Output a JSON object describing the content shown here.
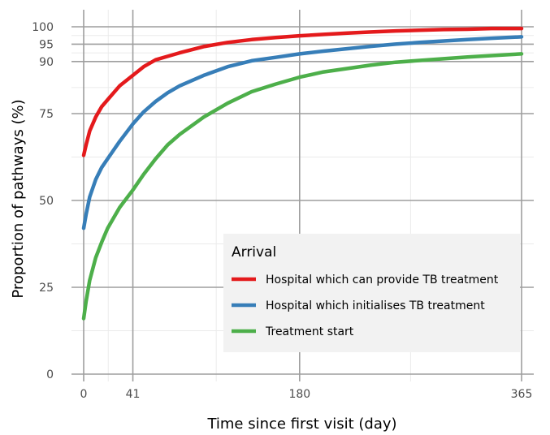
{
  "chart_data": {
    "type": "line",
    "title": "",
    "xlabel": "Time since first visit (day)",
    "ylabel": "Proportion of pathways (%)",
    "xlim": [
      0,
      365
    ],
    "ylim": [
      0,
      100
    ],
    "x_ticks": [
      0,
      41,
      180,
      365
    ],
    "y_ticks": [
      0,
      25,
      50,
      75,
      90,
      95,
      100
    ],
    "grid": true,
    "legend": {
      "title": "Arrival",
      "placement": "bottom-right",
      "entries": [
        "Hospital which can provide TB treatment",
        "Hospital which initialises TB treatment",
        "Treatment start"
      ]
    },
    "series": [
      {
        "name": "Hospital which can provide TB treatment",
        "color": "#e41a1c",
        "x": [
          0,
          2,
          5,
          10,
          15,
          20,
          25,
          30,
          41,
          50,
          60,
          70,
          80,
          100,
          120,
          140,
          160,
          180,
          200,
          220,
          240,
          260,
          280,
          300,
          320,
          340,
          365
        ],
        "y": [
          63,
          66,
          70,
          74,
          77,
          79,
          81,
          83,
          86,
          88.5,
          90.5,
          91.5,
          92.5,
          94.3,
          95.5,
          96.3,
          96.9,
          97.4,
          97.8,
          98.2,
          98.5,
          98.8,
          99.0,
          99.2,
          99.3,
          99.5,
          99.5
        ]
      },
      {
        "name": "Hospital which initialises TB treatment",
        "color": "#377eb8",
        "x": [
          0,
          2,
          5,
          10,
          15,
          20,
          25,
          30,
          41,
          50,
          60,
          70,
          80,
          100,
          120,
          140,
          160,
          180,
          200,
          220,
          240,
          260,
          280,
          300,
          320,
          340,
          365
        ],
        "y": [
          42,
          46,
          51,
          56,
          59.5,
          62,
          64.5,
          67,
          72,
          75.5,
          78.5,
          81,
          83,
          86,
          88.5,
          90.2,
          91.2,
          92.2,
          93,
          93.7,
          94.4,
          95,
          95.5,
          95.9,
          96.3,
          96.7,
          97.1
        ]
      },
      {
        "name": "Treatment start",
        "color": "#4daf4a",
        "x": [
          0,
          2,
          5,
          10,
          15,
          20,
          25,
          30,
          41,
          50,
          60,
          70,
          80,
          100,
          120,
          140,
          160,
          180,
          200,
          220,
          240,
          260,
          280,
          300,
          320,
          340,
          365
        ],
        "y": [
          16,
          21,
          27,
          33.5,
          38,
          42,
          45,
          48,
          53,
          57.5,
          62,
          66,
          69,
          74,
          78,
          81.3,
          83.5,
          85.5,
          87,
          88,
          89,
          89.8,
          90.3,
          90.8,
          91.3,
          91.7,
          92.2
        ]
      }
    ]
  }
}
